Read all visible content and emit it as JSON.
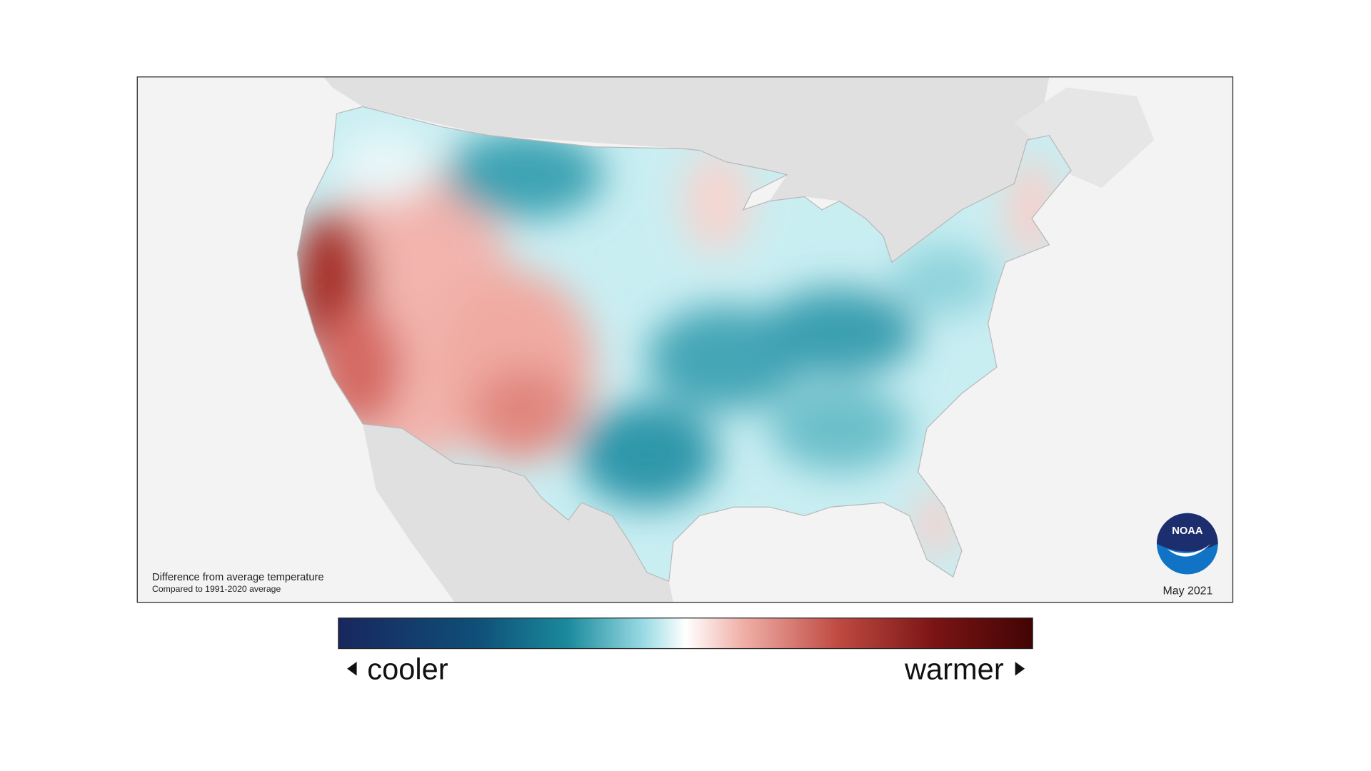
{
  "map": {
    "caption": "Difference from average temperature",
    "subcaption": "Compared to 1991-2020 average",
    "date": "May 2021",
    "logo": "NOAA"
  },
  "legend": {
    "low_label": "cooler",
    "high_label": "warmer"
  }
}
